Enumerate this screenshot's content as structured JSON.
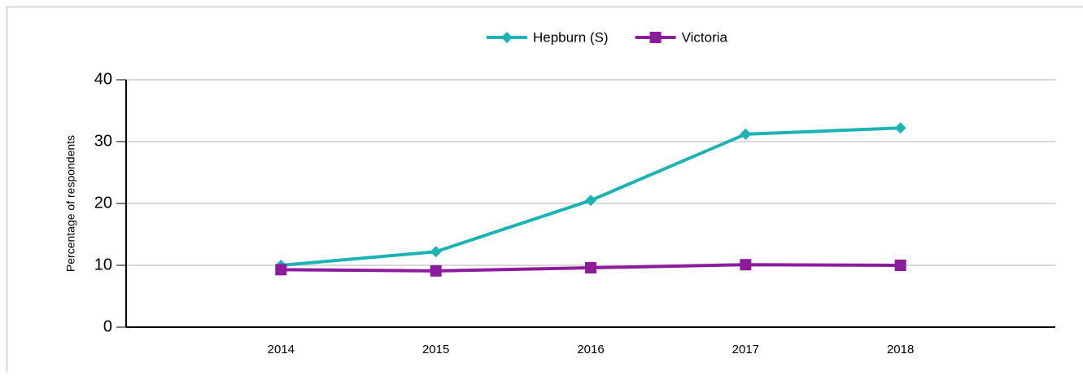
{
  "chart_data": {
    "type": "line",
    "y_label": "Percentage of respondents",
    "x": [
      2014,
      2015,
      2016,
      2017,
      2018
    ],
    "xlim": [
      2013,
      2019
    ],
    "xticks": [
      2014,
      2015,
      2016,
      2017,
      2018
    ],
    "ylim": [
      0,
      40
    ],
    "yticks": [
      0,
      10,
      20,
      30,
      40
    ],
    "grid": true,
    "legend": "top",
    "series": [
      {
        "name": "Hepburn (S)",
        "color": "#1db3b5",
        "marker": "diamond",
        "values": [
          10.0,
          12.2,
          20.5,
          31.2,
          32.2
        ]
      },
      {
        "name": "Victoria",
        "color": "#8c1c9c",
        "marker": "square",
        "values": [
          9.3,
          9.1,
          9.6,
          10.1,
          10.0
        ]
      }
    ]
  }
}
